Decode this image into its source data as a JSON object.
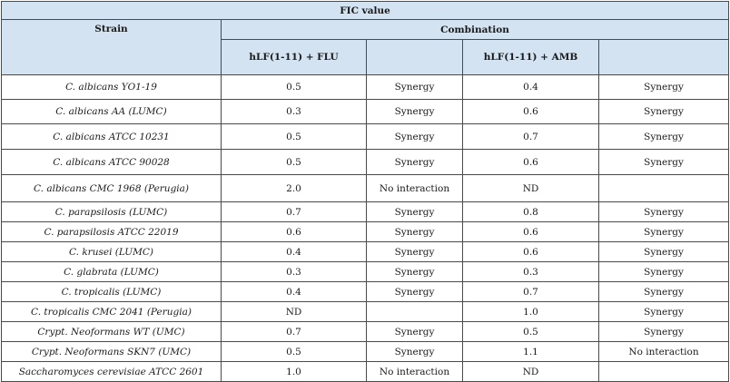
{
  "header": {
    "title": "FIC value",
    "strain": "Strain",
    "combination": "Combination",
    "col_flu": "hLF(1-11) + FLU",
    "col_amb": "hLF(1-11) + AMB"
  },
  "rows": [
    {
      "strain": "C. albicans YO1-19",
      "flu_value": "0.5",
      "flu_result": "Synergy",
      "amb_value": "0.4",
      "amb_result": "Synergy"
    },
    {
      "strain": "C. albicans AA (LUMC)",
      "flu_value": "0.3",
      "flu_result": "Synergy",
      "amb_value": "0.6",
      "amb_result": "Synergy"
    },
    {
      "strain": "C. albicans ATCC 10231",
      "flu_value": "0.5",
      "flu_result": "Synergy",
      "amb_value": "0.7",
      "amb_result": "Synergy"
    },
    {
      "strain": "C. albicans ATCC 90028",
      "flu_value": "0.5",
      "flu_result": "Synergy",
      "amb_value": "0.6",
      "amb_result": "Synergy"
    },
    {
      "strain": "C. albicans CMC 1968 (Perugia)",
      "flu_value": "2.0",
      "flu_result": "No interaction",
      "amb_value": "ND",
      "amb_result": ""
    },
    {
      "strain": "C. parapsilosis (LUMC)",
      "flu_value": "0.7",
      "flu_result": "Synergy",
      "amb_value": "0.8",
      "amb_result": "Synergy"
    },
    {
      "strain": "C. parapsilosis ATCC 22019",
      "flu_value": "0.6",
      "flu_result": "Synergy",
      "amb_value": "0.6",
      "amb_result": "Synergy"
    },
    {
      "strain": "C. krusei (LUMC)",
      "flu_value": "0.4",
      "flu_result": "Synergy",
      "amb_value": "0.6",
      "amb_result": "Synergy"
    },
    {
      "strain": "C. glabrata (LUMC)",
      "flu_value": "0.3",
      "flu_result": "Synergy",
      "amb_value": "0.3",
      "amb_result": "Synergy"
    },
    {
      "strain": "C. tropicalis (LUMC)",
      "flu_value": "0.4",
      "flu_result": "Synergy",
      "amb_value": "0.7",
      "amb_result": "Synergy"
    },
    {
      "strain": "C. tropicalis CMC 2041 (Perugia)",
      "flu_value": "ND",
      "flu_result": "",
      "amb_value": "1.0",
      "amb_result": "Synergy"
    },
    {
      "strain": "Crypt. Neoformans WT (UMC)",
      "flu_value": "0.7",
      "flu_result": "Synergy",
      "amb_value": "0.5",
      "amb_result": "Synergy"
    },
    {
      "strain": "Crypt. Neoformans SKN7 (UMC)",
      "flu_value": "0.5",
      "flu_result": "Synergy",
      "amb_value": "1.1",
      "amb_result": "No interaction"
    },
    {
      "strain": "Saccharomyces cerevisiae ATCC 2601",
      "flu_value": "1.0",
      "flu_result": "No interaction",
      "amb_value": "ND",
      "amb_result": ""
    }
  ],
  "colors": {
    "header_bg": "#d3e3f1",
    "border": "#4a4a4a"
  }
}
